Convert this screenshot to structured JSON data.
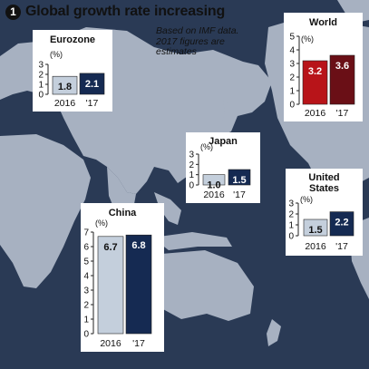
{
  "header": {
    "badge": "1",
    "title": "Global growth rate increasing"
  },
  "source_note": {
    "lines": [
      "Based on IMF data.",
      "2017 figures are",
      "estimates"
    ]
  },
  "colors": {
    "ocean": "#2a3a55",
    "land": "#a7b1c1",
    "bar_2016_default": "#c4cfdc",
    "bar_2017_default": "#152a52",
    "bar_2016_world": "#b81419",
    "bar_2017_world": "#6a0f16"
  },
  "chart_data": [
    {
      "id": "eurozone",
      "type": "bar",
      "title": "Eurozone",
      "unit": "(%)",
      "categories": [
        "2016",
        "'17"
      ],
      "values": [
        1.8,
        2.1
      ],
      "value_labels": [
        "1.8",
        "2.1"
      ],
      "y_ticks": [
        0,
        1,
        2,
        3
      ],
      "ylim": [
        0,
        3
      ],
      "colors": [
        "#c4cfdc",
        "#152a52"
      ]
    },
    {
      "id": "world",
      "type": "bar",
      "title": "World",
      "unit": "(%)",
      "categories": [
        "2016",
        "'17"
      ],
      "values": [
        3.2,
        3.6
      ],
      "value_labels": [
        "3.2",
        "3.6"
      ],
      "y_ticks": [
        0,
        1,
        2,
        3,
        4,
        5
      ],
      "ylim": [
        0,
        5
      ],
      "colors": [
        "#b81419",
        "#6a0f16"
      ]
    },
    {
      "id": "japan",
      "type": "bar",
      "title": "Japan",
      "unit": "(%)",
      "categories": [
        "2016",
        "'17"
      ],
      "values": [
        1.0,
        1.5
      ],
      "value_labels": [
        "1.0",
        "1.5"
      ],
      "y_ticks": [
        0,
        1,
        2,
        3
      ],
      "ylim": [
        0,
        3
      ],
      "colors": [
        "#c4cfdc",
        "#152a52"
      ]
    },
    {
      "id": "united-states",
      "type": "bar",
      "title": "United States",
      "title_lines": [
        "United",
        "States"
      ],
      "unit": "(%)",
      "categories": [
        "2016",
        "'17"
      ],
      "values": [
        1.5,
        2.2
      ],
      "value_labels": [
        "1.5",
        "2.2"
      ],
      "y_ticks": [
        0,
        1,
        2,
        3
      ],
      "ylim": [
        0,
        3
      ],
      "colors": [
        "#c4cfdc",
        "#152a52"
      ]
    },
    {
      "id": "china",
      "type": "bar",
      "title": "China",
      "unit": "(%)",
      "categories": [
        "2016",
        "'17"
      ],
      "values": [
        6.7,
        6.8
      ],
      "value_labels": [
        "6.7",
        "6.8"
      ],
      "y_ticks": [
        0,
        1,
        2,
        3,
        4,
        5,
        6,
        7
      ],
      "ylim": [
        0,
        7
      ],
      "colors": [
        "#c4cfdc",
        "#152a52"
      ]
    }
  ]
}
